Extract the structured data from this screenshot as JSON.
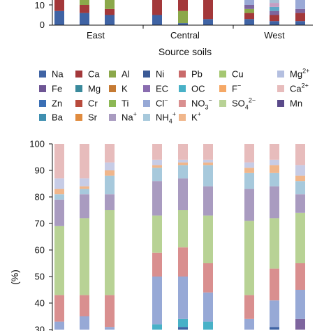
{
  "chart_data": [
    {
      "type": "bar",
      "stacked": true,
      "categories": [
        "East",
        "Central",
        "West"
      ],
      "xlabel": "Source soils",
      "ylabel": "",
      "y_ticks": [
        "0",
        "10"
      ],
      "bars": [
        {
          "group": 0,
          "segments": [
            [
              0,
              7,
              "#3f63a4"
            ],
            [
              7,
              13,
              "#a3383a"
            ]
          ]
        },
        {
          "group": 0,
          "segments": [
            [
              0,
              6,
              "#3f63a4"
            ],
            [
              6,
              10,
              "#a3383a"
            ],
            [
              10,
              13,
              "#8ba84a"
            ]
          ]
        },
        {
          "group": 0,
          "segments": [
            [
              0,
              5,
              "#3f63a4"
            ],
            [
              5,
              8,
              "#a3383a"
            ],
            [
              8,
              13,
              "#8ba84a"
            ]
          ]
        },
        {
          "group": 1,
          "segments": [
            [
              0,
              5,
              "#3f63a4"
            ],
            [
              5,
              13,
              "#a3383a"
            ]
          ]
        },
        {
          "group": 1,
          "segments": [
            [
              0,
              1,
              "#3f63a4"
            ],
            [
              1,
              7,
              "#8ba84a"
            ],
            [
              7,
              13,
              "#a3383a"
            ]
          ]
        },
        {
          "group": 1,
          "segments": [
            [
              0,
              3,
              "#3f63a4"
            ],
            [
              3,
              13,
              "#a3383a"
            ]
          ]
        },
        {
          "group": 2,
          "segments": [
            [
              0,
              3,
              "#3f63a4"
            ],
            [
              3,
              6,
              "#a3383a"
            ],
            [
              6,
              8,
              "#8ba84a"
            ],
            [
              8,
              10,
              "#7e659e"
            ],
            [
              10,
              13,
              "#9aa9d6"
            ]
          ]
        },
        {
          "group": 2,
          "segments": [
            [
              0,
              2,
              "#3f63a4"
            ],
            [
              2,
              5,
              "#a3383a"
            ],
            [
              5,
              7,
              "#7e659e"
            ],
            [
              7,
              9,
              "#5ea7c6"
            ],
            [
              9,
              11,
              "#c49ec2"
            ],
            [
              11,
              13,
              "#a7bed4"
            ]
          ]
        },
        {
          "group": 2,
          "segments": [
            [
              0,
              2,
              "#3f63a4"
            ],
            [
              2,
              6,
              "#a3383a"
            ],
            [
              6,
              8,
              "#7e659e"
            ],
            [
              8,
              13,
              "#9aa9d6"
            ]
          ]
        }
      ]
    },
    {
      "type": "bar",
      "stacked": true,
      "categories": [
        "",
        "",
        ""
      ],
      "xlabel": "",
      "ylabel": "(%)",
      "ylim": [
        30,
        100
      ],
      "y_ticks": [
        "30",
        "40",
        "50",
        "60",
        "70",
        "80",
        "90",
        "100"
      ],
      "bars": [
        {
          "group": 0,
          "segments": [
            [
              30,
              33,
              "#97a9d6"
            ],
            [
              33,
              43,
              "#d98f8f"
            ],
            [
              43,
              69,
              "#b8d295"
            ],
            [
              69,
              79,
              "#a99bc0"
            ],
            [
              79,
              81,
              "#a7c9dc"
            ],
            [
              81,
              83,
              "#f0b68b"
            ],
            [
              83,
              87,
              "#c7cce6"
            ],
            [
              87,
              100,
              "#e7bcbc"
            ]
          ]
        },
        {
          "group": 0,
          "segments": [
            [
              30,
              35,
              "#97a9d6"
            ],
            [
              35,
              43,
              "#d98f8f"
            ],
            [
              43,
              72,
              "#b8d295"
            ],
            [
              72,
              81,
              "#a99bc0"
            ],
            [
              81,
              83,
              "#a7c9dc"
            ],
            [
              83,
              84,
              "#f0b68b"
            ],
            [
              84,
              87,
              "#c7cce6"
            ],
            [
              87,
              100,
              "#e7bcbc"
            ]
          ]
        },
        {
          "group": 0,
          "segments": [
            [
              30,
              31,
              "#97a9d6"
            ],
            [
              31,
              43,
              "#d98f8f"
            ],
            [
              43,
              75,
              "#b8d295"
            ],
            [
              75,
              81,
              "#a99bc0"
            ],
            [
              81,
              88,
              "#a7c9dc"
            ],
            [
              88,
              90,
              "#f0b68b"
            ],
            [
              90,
              93,
              "#c7cce6"
            ],
            [
              93,
              100,
              "#e7bcbc"
            ]
          ]
        },
        {
          "group": 1,
          "segments": [
            [
              30,
              32,
              "#48b1c7"
            ],
            [
              32,
              50,
              "#97a9d6"
            ],
            [
              50,
              59,
              "#d98f8f"
            ],
            [
              59,
              73,
              "#b8d295"
            ],
            [
              73,
              86,
              "#a99bc0"
            ],
            [
              86,
              91,
              "#a7c9dc"
            ],
            [
              91,
              92,
              "#f0b68b"
            ],
            [
              92,
              94,
              "#c7cce6"
            ],
            [
              94,
              100,
              "#e7bcbc"
            ]
          ]
        },
        {
          "group": 1,
          "segments": [
            [
              30,
              31,
              "#3f63a4"
            ],
            [
              31,
              34,
              "#48b1c7"
            ],
            [
              34,
              50,
              "#97a9d6"
            ],
            [
              50,
              61,
              "#d98f8f"
            ],
            [
              61,
              75,
              "#b8d295"
            ],
            [
              75,
              87,
              "#a99bc0"
            ],
            [
              87,
              92,
              "#a7c9dc"
            ],
            [
              92,
              93,
              "#f0b68b"
            ],
            [
              93,
              94,
              "#c7cce6"
            ],
            [
              94,
              100,
              "#e7bcbc"
            ]
          ]
        },
        {
          "group": 1,
          "segments": [
            [
              30,
              33,
              "#48b1c7"
            ],
            [
              33,
              44,
              "#97a9d6"
            ],
            [
              44,
              55,
              "#d98f8f"
            ],
            [
              55,
              73,
              "#b8d295"
            ],
            [
              73,
              84,
              "#a99bc0"
            ],
            [
              84,
              92,
              "#a7c9dc"
            ],
            [
              92,
              93,
              "#f0b68b"
            ],
            [
              93,
              94,
              "#c7cce6"
            ],
            [
              94,
              100,
              "#e7bcbc"
            ]
          ]
        },
        {
          "group": 2,
          "segments": [
            [
              30,
              34,
              "#97a9d6"
            ],
            [
              34,
              43,
              "#d98f8f"
            ],
            [
              43,
              71,
              "#b8d295"
            ],
            [
              71,
              83,
              "#a99bc0"
            ],
            [
              83,
              89,
              "#a7c9dc"
            ],
            [
              89,
              91,
              "#f0b68b"
            ],
            [
              91,
              93,
              "#c7cce6"
            ],
            [
              93,
              100,
              "#e7bcbc"
            ]
          ]
        },
        {
          "group": 2,
          "segments": [
            [
              30,
              31,
              "#3f63a4"
            ],
            [
              31,
              41,
              "#97a9d6"
            ],
            [
              41,
              53,
              "#d98f8f"
            ],
            [
              53,
              72,
              "#b8d295"
            ],
            [
              72,
              84,
              "#a99bc0"
            ],
            [
              84,
              89,
              "#a7c9dc"
            ],
            [
              89,
              92,
              "#f0b68b"
            ],
            [
              92,
              94,
              "#c7cce6"
            ],
            [
              94,
              100,
              "#e7bcbc"
            ]
          ]
        },
        {
          "group": 2,
          "segments": [
            [
              30,
              34,
              "#7e659e"
            ],
            [
              34,
              45,
              "#97a9d6"
            ],
            [
              45,
              55,
              "#d98f8f"
            ],
            [
              55,
              74,
              "#b8d295"
            ],
            [
              74,
              81,
              "#a99bc0"
            ],
            [
              81,
              86,
              "#a7c9dc"
            ],
            [
              86,
              88,
              "#f0b68b"
            ],
            [
              88,
              92,
              "#c7cce6"
            ],
            [
              92,
              100,
              "#e7bcbc"
            ]
          ]
        }
      ]
    }
  ],
  "legend": [
    {
      "label": "Na",
      "sup": "",
      "sub": "",
      "color": "#3f63a4"
    },
    {
      "label": "Ca",
      "sup": "",
      "sub": "",
      "color": "#a3383a"
    },
    {
      "label": "Al",
      "sup": "",
      "sub": "",
      "color": "#8ba84a"
    },
    {
      "label": "Ni",
      "sup": "",
      "sub": "",
      "color": "#3b5a96"
    },
    {
      "label": "Pb",
      "sup": "",
      "sub": "",
      "color": "#c96a6a"
    },
    {
      "label": "Cu",
      "sup": "",
      "sub": "",
      "color": "#a5c771"
    },
    {
      "label": "Mg",
      "sup": "2+",
      "sub": "",
      "color": "#b4bfe0"
    },
    {
      "label": "Fe",
      "sup": "",
      "sub": "",
      "color": "#6e5594"
    },
    {
      "label": "Mg",
      "sup": "",
      "sub": "",
      "color": "#3a8a9c"
    },
    {
      "label": "K",
      "sup": "",
      "sub": "",
      "color": "#c57a33"
    },
    {
      "label": "EC",
      "sup": "",
      "sub": "",
      "color": "#8a6db0"
    },
    {
      "label": "OC",
      "sup": "",
      "sub": "",
      "color": "#48b1c7"
    },
    {
      "label": "F",
      "sup": "−",
      "sub": "",
      "color": "#f5a866"
    },
    {
      "label": "Ca",
      "sup": "2+",
      "sub": "",
      "color": "#e7bcbc"
    },
    {
      "label": "Zn",
      "sup": "",
      "sub": "",
      "color": "#3a6fb5"
    },
    {
      "label": "Cr",
      "sup": "",
      "sub": "",
      "color": "#b84a3c"
    },
    {
      "label": "Ti",
      "sup": "",
      "sub": "",
      "color": "#8cb854"
    },
    {
      "label": "Cl",
      "sup": "−",
      "sub": "",
      "color": "#97a9d6"
    },
    {
      "label": "NO",
      "sup": "−",
      "sub": "3",
      "color": "#d98f8f"
    },
    {
      "label": "SO",
      "sup": "2−",
      "sub": "4",
      "color": "#b8d295"
    },
    {
      "label": "Mn",
      "sup": "",
      "sub": "",
      "color": "#5a4a8a"
    },
    {
      "label": "Ba",
      "sup": "",
      "sub": "",
      "color": "#3f8fb0"
    },
    {
      "label": "Sr",
      "sup": "",
      "sub": "",
      "color": "#e08b3e"
    },
    {
      "label": "Na",
      "sup": "+",
      "sub": "",
      "color": "#a99bc0"
    },
    {
      "label": "NH",
      "sup": "+",
      "sub": "4",
      "color": "#a7c9dc"
    },
    {
      "label": "K",
      "sup": "+",
      "sub": "",
      "color": "#f0b68b"
    }
  ]
}
